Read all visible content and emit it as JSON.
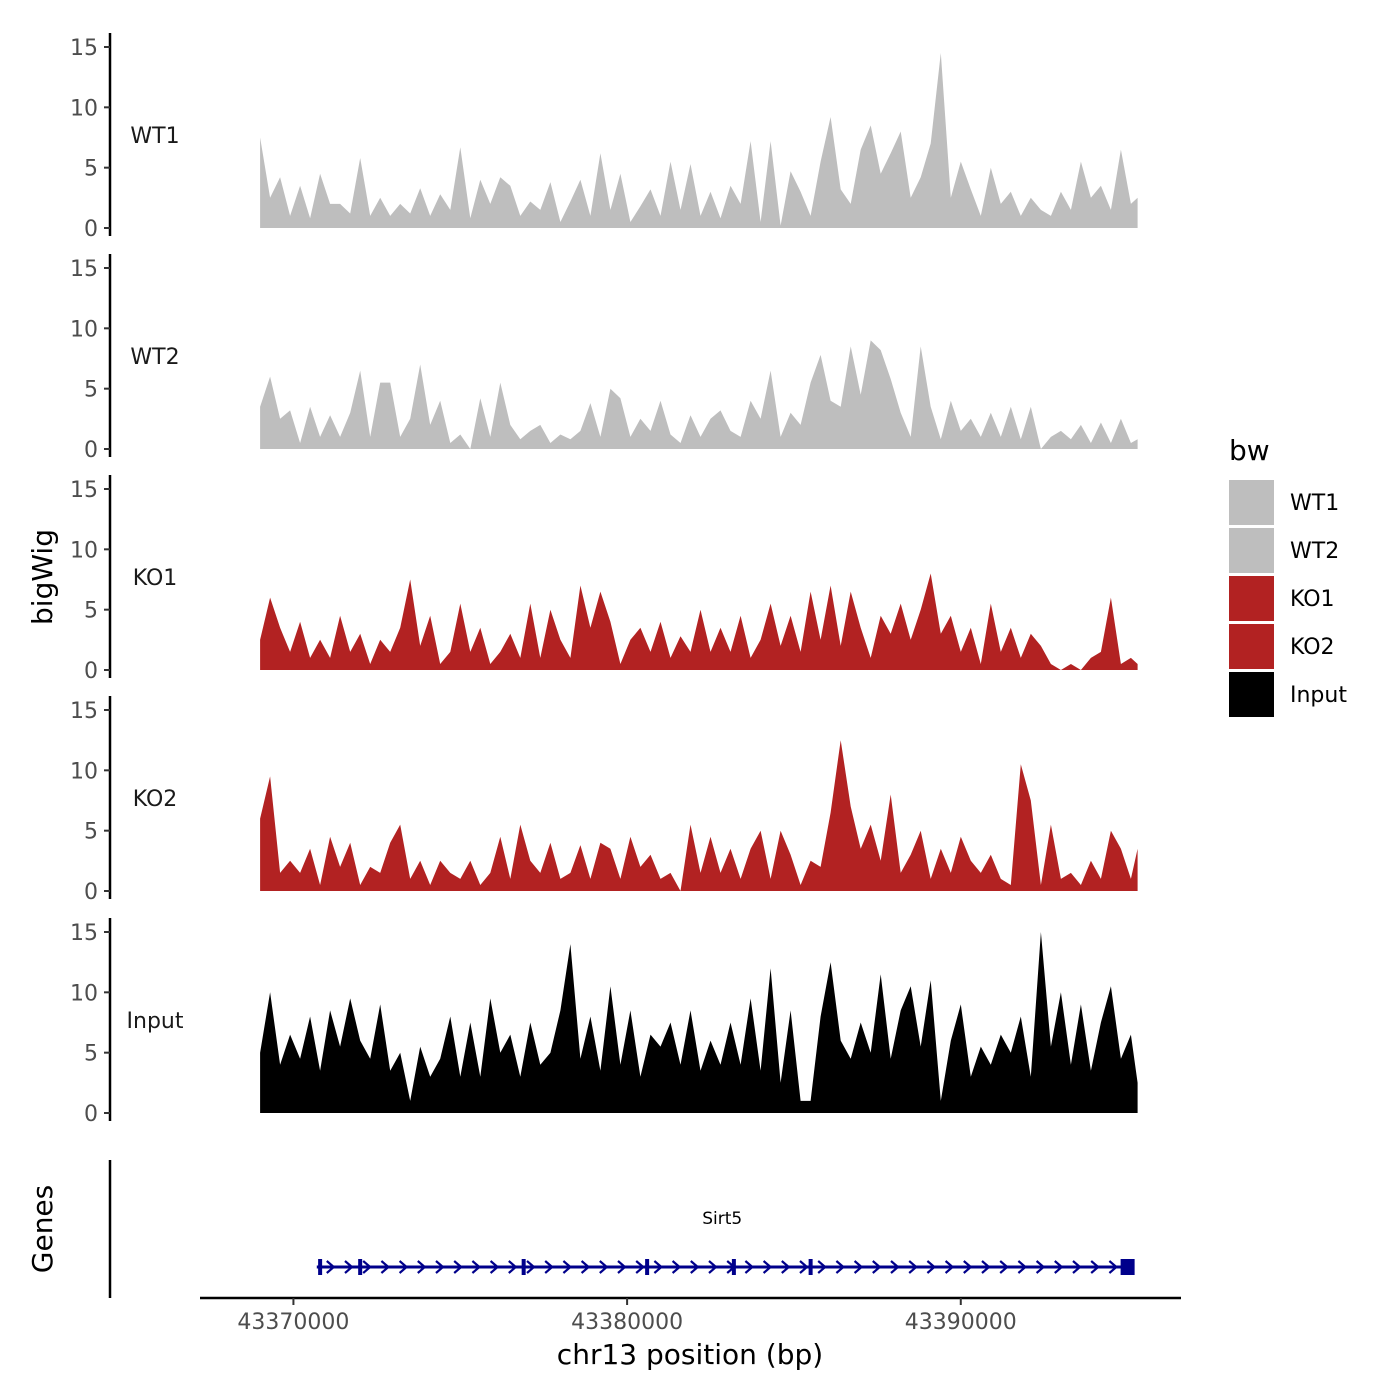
{
  "chart_data": {
    "type": "area",
    "xlabel": "chr13 position (bp)",
    "ylabel": "bigWig",
    "genes_label": "Genes",
    "x_range": [
      43367200,
      43396600
    ],
    "x_ticks": [
      43370000,
      43380000,
      43390000
    ],
    "x_tick_labels": [
      "43370000",
      "43380000",
      "43390000"
    ],
    "ylim": [
      0,
      16
    ],
    "y_ticks": [
      0,
      5,
      10,
      15
    ],
    "y_tick_labels": [
      "0",
      "5",
      "10",
      "15"
    ],
    "legend": {
      "title": "bw",
      "placement": "right",
      "entries": [
        {
          "label": "WT1",
          "color": "#bebebe"
        },
        {
          "label": "WT2",
          "color": "#bebebe"
        },
        {
          "label": "KO1",
          "color": "#b22222"
        },
        {
          "label": "KO2",
          "color": "#b22222"
        },
        {
          "label": "Input",
          "color": "#000000"
        }
      ]
    },
    "series": [
      {
        "name": "WT1",
        "color": "#bebebe",
        "x": [
          43369000,
          43369300,
          43369600,
          43369900,
          43370200,
          43370500,
          43370800,
          43371100,
          43371400,
          43371700,
          43372000,
          43372300,
          43372600,
          43372900,
          43373200,
          43373500,
          43373800,
          43374100,
          43374400,
          43374700,
          43375000,
          43375300,
          43375600,
          43375900,
          43376200,
          43376500,
          43376800,
          43377100,
          43377400,
          43377700,
          43378000,
          43378300,
          43378600,
          43378900,
          43379200,
          43379500,
          43379800,
          43380100,
          43380400,
          43380700,
          43381000,
          43381300,
          43381600,
          43381900,
          43382200,
          43382500,
          43382800,
          43383100,
          43383400,
          43383700,
          43384000,
          43384300,
          43384600,
          43384900,
          43385200,
          43385500,
          43385800,
          43386100,
          43386400,
          43386700,
          43387000,
          43387300,
          43387600,
          43387900,
          43388200,
          43388500,
          43388800,
          43389100,
          43389400,
          43389700,
          43390000,
          43390300,
          43390600,
          43390900,
          43391200,
          43391500,
          43391800,
          43392100,
          43392400,
          43392700,
          43393000,
          43393300,
          43393600,
          43393900,
          43394200,
          43394500,
          43394800,
          43395100,
          43395300
        ],
        "values": [
          7.5,
          2.5,
          4.2,
          1.0,
          3.5,
          0.8,
          4.5,
          2.0,
          2.0,
          1.2,
          5.8,
          1.0,
          2.5,
          1.0,
          2.0,
          1.2,
          3.3,
          1.0,
          2.8,
          1.5,
          6.7,
          0.8,
          4.0,
          2.0,
          4.2,
          3.5,
          1.0,
          2.2,
          1.5,
          3.8,
          0.5,
          2.2,
          4.0,
          1.0,
          6.2,
          1.5,
          4.5,
          0.5,
          1.8,
          3.2,
          1.0,
          5.5,
          1.5,
          5.3,
          1.0,
          3.0,
          0.8,
          3.5,
          2.0,
          7.2,
          0.5,
          7.2,
          0.2,
          4.7,
          3.0,
          1.0,
          5.5,
          9.2,
          3.2,
          2.0,
          6.5,
          8.5,
          4.5,
          6.2,
          8.0,
          2.5,
          4.2,
          7.0,
          14.5,
          2.5,
          5.5,
          3.2,
          1.0,
          5.0,
          2.0,
          3.0,
          1.0,
          2.5,
          1.5,
          1.0,
          3.0,
          1.5,
          5.5,
          2.5,
          3.5,
          1.5,
          6.5,
          2.0,
          2.5
        ]
      },
      {
        "name": "WT2",
        "color": "#bebebe",
        "x": [
          43369000,
          43369300,
          43369600,
          43369900,
          43370200,
          43370500,
          43370800,
          43371100,
          43371400,
          43371700,
          43372000,
          43372300,
          43372600,
          43372900,
          43373200,
          43373500,
          43373800,
          43374100,
          43374400,
          43374700,
          43375000,
          43375300,
          43375600,
          43375900,
          43376200,
          43376500,
          43376800,
          43377100,
          43377400,
          43377700,
          43378000,
          43378300,
          43378600,
          43378900,
          43379200,
          43379500,
          43379800,
          43380100,
          43380400,
          43380700,
          43381000,
          43381300,
          43381600,
          43381900,
          43382200,
          43382500,
          43382800,
          43383100,
          43383400,
          43383700,
          43384000,
          43384300,
          43384600,
          43384900,
          43385200,
          43385500,
          43385800,
          43386100,
          43386400,
          43386700,
          43387000,
          43387300,
          43387600,
          43387900,
          43388200,
          43388500,
          43388800,
          43389100,
          43389400,
          43389700,
          43390000,
          43390300,
          43390600,
          43390900,
          43391200,
          43391500,
          43391800,
          43392100,
          43392400,
          43392700,
          43393000,
          43393300,
          43393600,
          43393900,
          43394200,
          43394500,
          43394800,
          43395100,
          43395300
        ],
        "values": [
          3.5,
          6.0,
          2.5,
          3.2,
          0.5,
          3.5,
          1.0,
          2.8,
          1.0,
          3.0,
          6.5,
          1.0,
          5.5,
          5.5,
          1.0,
          2.5,
          7.0,
          2.0,
          4.0,
          0.5,
          1.2,
          0.0,
          4.2,
          1.0,
          5.5,
          2.0,
          0.8,
          1.5,
          2.0,
          0.5,
          1.2,
          0.8,
          1.5,
          3.8,
          1.0,
          5.0,
          4.2,
          1.0,
          2.5,
          1.5,
          4.0,
          1.2,
          0.5,
          2.8,
          1.0,
          2.5,
          3.2,
          1.5,
          1.0,
          4.0,
          2.5,
          6.5,
          1.0,
          3.0,
          2.0,
          5.5,
          7.8,
          4.0,
          3.5,
          8.5,
          4.5,
          9.0,
          8.2,
          5.8,
          3.0,
          1.0,
          8.5,
          3.5,
          0.8,
          4.0,
          1.5,
          2.5,
          1.0,
          3.0,
          1.0,
          3.5,
          0.8,
          3.5,
          0.0,
          1.0,
          1.5,
          0.8,
          2.0,
          0.5,
          2.2,
          0.5,
          2.5,
          0.5,
          0.8
        ]
      },
      {
        "name": "KO1",
        "color": "#b22222",
        "x": [
          43369000,
          43369300,
          43369600,
          43369900,
          43370200,
          43370500,
          43370800,
          43371100,
          43371400,
          43371700,
          43372000,
          43372300,
          43372600,
          43372900,
          43373200,
          43373500,
          43373800,
          43374100,
          43374400,
          43374700,
          43375000,
          43375300,
          43375600,
          43375900,
          43376200,
          43376500,
          43376800,
          43377100,
          43377400,
          43377700,
          43378000,
          43378300,
          43378600,
          43378900,
          43379200,
          43379500,
          43379800,
          43380100,
          43380400,
          43380700,
          43381000,
          43381300,
          43381600,
          43381900,
          43382200,
          43382500,
          43382800,
          43383100,
          43383400,
          43383700,
          43384000,
          43384300,
          43384600,
          43384900,
          43385200,
          43385500,
          43385800,
          43386100,
          43386400,
          43386700,
          43387000,
          43387300,
          43387600,
          43387900,
          43388200,
          43388500,
          43388800,
          43389100,
          43389400,
          43389700,
          43390000,
          43390300,
          43390600,
          43390900,
          43391200,
          43391500,
          43391800,
          43392100,
          43392400,
          43392700,
          43393000,
          43393300,
          43393600,
          43393900,
          43394200,
          43394500,
          43394800,
          43395100,
          43395300
        ],
        "values": [
          2.5,
          6.0,
          3.5,
          1.5,
          4.0,
          1.0,
          2.5,
          1.0,
          4.5,
          1.5,
          3.0,
          0.5,
          2.5,
          1.5,
          3.5,
          7.5,
          2.0,
          4.5,
          0.5,
          1.5,
          5.5,
          1.5,
          3.5,
          0.5,
          1.5,
          3.0,
          1.0,
          5.5,
          1.0,
          5.0,
          2.5,
          1.0,
          7.0,
          3.5,
          6.5,
          4.0,
          0.5,
          2.5,
          3.5,
          1.5,
          4.0,
          1.0,
          2.8,
          1.5,
          5.0,
          1.5,
          3.5,
          1.5,
          4.5,
          1.0,
          2.5,
          5.5,
          2.0,
          4.5,
          1.5,
          6.5,
          2.5,
          7.0,
          2.0,
          6.5,
          3.5,
          1.0,
          4.5,
          3.0,
          5.5,
          2.5,
          5.0,
          8.0,
          3.0,
          4.5,
          1.5,
          3.5,
          0.5,
          5.5,
          1.5,
          3.5,
          1.0,
          3.0,
          2.0,
          0.5,
          0.0,
          0.5,
          0.0,
          1.0,
          1.5,
          6.0,
          0.5,
          1.0,
          0.5
        ]
      },
      {
        "name": "KO2",
        "color": "#b22222",
        "x": [
          43369000,
          43369300,
          43369600,
          43369900,
          43370200,
          43370500,
          43370800,
          43371100,
          43371400,
          43371700,
          43372000,
          43372300,
          43372600,
          43372900,
          43373200,
          43373500,
          43373800,
          43374100,
          43374400,
          43374700,
          43375000,
          43375300,
          43375600,
          43375900,
          43376200,
          43376500,
          43376800,
          43377100,
          43377400,
          43377700,
          43378000,
          43378300,
          43378600,
          43378900,
          43379200,
          43379500,
          43379800,
          43380100,
          43380400,
          43380700,
          43381000,
          43381300,
          43381600,
          43381900,
          43382200,
          43382500,
          43382800,
          43383100,
          43383400,
          43383700,
          43384000,
          43384300,
          43384600,
          43384900,
          43385200,
          43385500,
          43385800,
          43386100,
          43386400,
          43386700,
          43387000,
          43387300,
          43387600,
          43387900,
          43388200,
          43388500,
          43388800,
          43389100,
          43389400,
          43389700,
          43390000,
          43390300,
          43390600,
          43390900,
          43391200,
          43391500,
          43391800,
          43392100,
          43392400,
          43392700,
          43393000,
          43393300,
          43393600,
          43393900,
          43394200,
          43394500,
          43394800,
          43395100,
          43395300
        ],
        "values": [
          6.0,
          9.5,
          1.5,
          2.5,
          1.5,
          3.5,
          0.5,
          4.5,
          2.0,
          4.0,
          0.5,
          2.0,
          1.5,
          4.0,
          5.5,
          1.0,
          2.5,
          0.5,
          2.5,
          1.5,
          1.0,
          2.5,
          0.5,
          1.5,
          4.5,
          1.0,
          5.5,
          2.5,
          1.5,
          4.0,
          1.0,
          1.5,
          3.8,
          1.0,
          4.0,
          3.5,
          1.0,
          4.5,
          2.0,
          3.0,
          1.0,
          1.5,
          0.0,
          5.5,
          1.5,
          4.5,
          1.5,
          3.5,
          1.0,
          3.5,
          5.0,
          1.0,
          5.0,
          3.0,
          0.5,
          2.5,
          2.0,
          6.5,
          12.5,
          7.0,
          3.5,
          5.5,
          2.5,
          8.0,
          1.5,
          3.0,
          5.0,
          1.0,
          3.5,
          1.5,
          4.5,
          2.5,
          1.5,
          3.0,
          1.0,
          0.5,
          10.5,
          7.5,
          0.5,
          5.5,
          1.0,
          1.5,
          0.5,
          2.5,
          1.0,
          5.0,
          3.5,
          1.0,
          3.5
        ]
      },
      {
        "name": "Input",
        "color": "#000000",
        "x": [
          43369000,
          43369300,
          43369600,
          43369900,
          43370200,
          43370500,
          43370800,
          43371100,
          43371400,
          43371700,
          43372000,
          43372300,
          43372600,
          43372900,
          43373200,
          43373500,
          43373800,
          43374100,
          43374400,
          43374700,
          43375000,
          43375300,
          43375600,
          43375900,
          43376200,
          43376500,
          43376800,
          43377100,
          43377400,
          43377700,
          43378000,
          43378300,
          43378600,
          43378900,
          43379200,
          43379500,
          43379800,
          43380100,
          43380400,
          43380700,
          43381000,
          43381300,
          43381600,
          43381900,
          43382200,
          43382500,
          43382800,
          43383100,
          43383400,
          43383700,
          43384000,
          43384300,
          43384600,
          43384900,
          43385200,
          43385500,
          43385800,
          43386100,
          43386400,
          43386700,
          43387000,
          43387300,
          43387600,
          43387900,
          43388200,
          43388500,
          43388800,
          43389100,
          43389400,
          43389700,
          43390000,
          43390300,
          43390600,
          43390900,
          43391200,
          43391500,
          43391800,
          43392100,
          43392400,
          43392700,
          43393000,
          43393300,
          43393600,
          43393900,
          43394200,
          43394500,
          43394800,
          43395100,
          43395300
        ],
        "values": [
          5.0,
          10.0,
          4.0,
          6.5,
          4.5,
          8.0,
          3.5,
          8.5,
          5.5,
          9.5,
          6.0,
          4.5,
          9.0,
          3.5,
          5.0,
          1.0,
          5.5,
          3.0,
          4.5,
          8.0,
          3.0,
          7.5,
          3.0,
          9.5,
          5.0,
          6.5,
          3.0,
          7.5,
          4.0,
          5.0,
          8.5,
          14.0,
          4.5,
          8.0,
          3.5,
          10.5,
          4.0,
          8.5,
          3.0,
          6.5,
          5.5,
          7.5,
          4.0,
          8.5,
          3.5,
          6.0,
          4.0,
          7.5,
          4.0,
          9.5,
          3.5,
          12.0,
          2.5,
          8.5,
          1.0,
          1.0,
          8.0,
          12.5,
          6.0,
          4.5,
          7.5,
          5.0,
          11.5,
          4.5,
          8.5,
          10.5,
          5.5,
          11.0,
          1.0,
          6.0,
          9.0,
          3.0,
          5.5,
          4.0,
          6.5,
          5.0,
          8.0,
          3.0,
          15.0,
          5.5,
          10.0,
          4.0,
          9.0,
          3.5,
          7.5,
          10.5,
          4.5,
          6.5,
          2.5
        ]
      }
    ],
    "genes": [
      {
        "name": "Sirt5",
        "start": 43370700,
        "end": 43395000,
        "strand": "+",
        "exons": [
          43370800,
          43372000,
          43376900,
          43380600,
          43383200,
          43385500,
          43395000
        ]
      }
    ]
  }
}
